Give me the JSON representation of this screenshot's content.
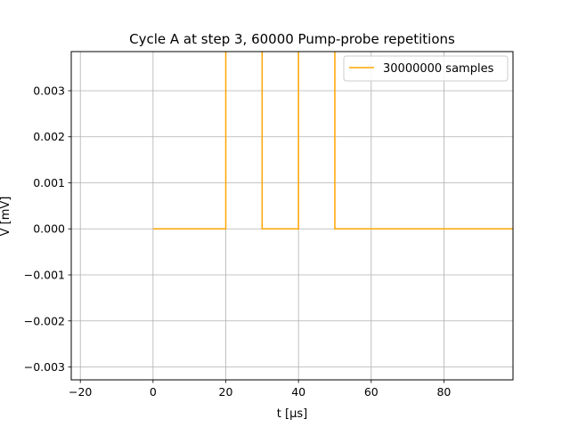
{
  "chart_data": {
    "type": "line",
    "title": "Cycle A at step 3, 60000 Pump-probe repetitions",
    "xlabel": "t [μs]",
    "ylabel": "V  [mV]",
    "xlim": [
      -22.5,
      99
    ],
    "ylim": [
      -0.00328,
      0.00385
    ],
    "x_ticks": [
      -20,
      0,
      20,
      40,
      60,
      80
    ],
    "x_tick_labels": [
      "−20",
      "0",
      "20",
      "40",
      "60",
      "80"
    ],
    "y_ticks": [
      -0.003,
      -0.002,
      -0.001,
      0.0,
      0.001,
      0.002,
      0.003
    ],
    "y_tick_labels": [
      "−0.003",
      "−0.002",
      "−0.001",
      "0.000",
      "0.001",
      "0.002",
      "0.003"
    ],
    "grid": true,
    "legend_position": "top-right",
    "series": [
      {
        "name": "30000000 samples",
        "color": "#ffa500",
        "step": true,
        "x": [
          0,
          20,
          20,
          30,
          30,
          40,
          40,
          50,
          50,
          99
        ],
        "y": [
          0,
          0,
          0.0045,
          0.0045,
          0,
          0,
          0.0045,
          0.0045,
          0,
          0
        ]
      }
    ]
  }
}
